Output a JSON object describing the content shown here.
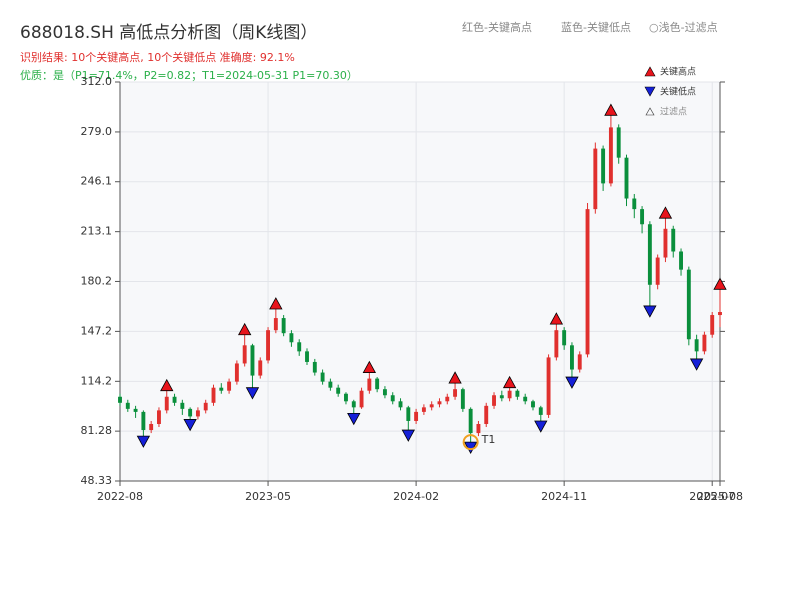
{
  "chart_data": {
    "type": "candlestick",
    "title": "688018.SH 高低点分析图（周K线图）",
    "top_legend": [
      "红色-关键高点",
      "蓝色-关键低点",
      "○浅色-过滤点"
    ],
    "subtitle": "识别结果: 10个关键高点, 10个关键低点  准确度: 92.1%",
    "quality": "优质：是（P1=71.4%，P2=0.82；T1=2024-05-31 P1=70.30）",
    "up_color": "#e0302e",
    "down_color": "#0a8f3c",
    "categories": [
      "2022-08",
      null,
      null,
      null,
      null,
      null,
      null,
      null,
      null,
      null,
      null,
      null,
      null,
      null,
      null,
      null,
      null,
      null,
      null,
      "2023-05",
      null,
      null,
      null,
      null,
      null,
      null,
      null,
      null,
      null,
      null,
      null,
      null,
      null,
      null,
      null,
      null,
      null,
      null,
      "2024-02",
      null,
      null,
      null,
      null,
      null,
      null,
      null,
      null,
      null,
      null,
      null,
      null,
      null,
      null,
      null,
      null,
      null,
      null,
      "2024-11",
      null,
      null,
      null,
      null,
      null,
      null,
      null,
      null,
      null,
      null,
      null,
      null,
      null,
      null,
      null,
      null,
      null,
      null,
      "2025-07",
      "2025-08"
    ],
    "open": [
      104,
      100,
      96,
      94,
      82,
      86,
      95,
      104,
      100,
      96,
      91,
      95,
      100,
      110,
      108,
      114,
      126,
      138,
      118,
      128,
      148,
      156,
      146,
      140,
      134,
      127,
      120,
      114,
      110,
      106,
      101,
      97,
      108,
      116,
      109,
      105,
      101,
      97,
      88,
      94,
      97,
      99,
      101,
      104,
      109,
      96,
      80,
      86,
      98,
      105,
      103,
      108,
      104,
      101,
      97,
      92,
      130,
      148,
      138,
      122,
      132,
      228,
      268,
      245,
      282,
      262,
      235,
      228,
      218,
      178,
      196,
      215,
      200,
      188,
      142,
      134,
      145,
      158
    ],
    "high": [
      106,
      102,
      98,
      95,
      88,
      97,
      108,
      106,
      102,
      97,
      97,
      102,
      112,
      113,
      116,
      128,
      145,
      139,
      130,
      150,
      162,
      158,
      148,
      142,
      136,
      129,
      122,
      116,
      112,
      107,
      102,
      110,
      120,
      117,
      111,
      107,
      103,
      98,
      96,
      99,
      101,
      103,
      106,
      113,
      110,
      97,
      88,
      100,
      107,
      108,
      110,
      109,
      106,
      102,
      98,
      132,
      152,
      150,
      140,
      134,
      232,
      272,
      270,
      290,
      284,
      264,
      238,
      230,
      220,
      198,
      222,
      217,
      202,
      190,
      145,
      147,
      160,
      175
    ],
    "low": [
      98,
      94,
      90,
      78,
      80,
      84,
      93,
      98,
      92,
      89,
      89,
      93,
      98,
      106,
      106,
      112,
      124,
      110,
      116,
      126,
      146,
      144,
      137,
      131,
      125,
      118,
      112,
      108,
      104,
      99,
      93,
      96,
      106,
      107,
      103,
      99,
      95,
      82,
      86,
      92,
      95,
      97,
      99,
      102,
      94,
      74,
      78,
      84,
      96,
      101,
      101,
      102,
      99,
      95,
      88,
      90,
      128,
      135,
      117,
      120,
      130,
      225,
      240,
      243,
      258,
      230,
      222,
      212,
      164,
      175,
      193,
      196,
      184,
      138,
      129,
      132,
      143,
      150
    ],
    "close": [
      100,
      96,
      94,
      82,
      86,
      95,
      104,
      100,
      96,
      91,
      95,
      100,
      110,
      108,
      114,
      126,
      138,
      118,
      128,
      148,
      156,
      146,
      140,
      134,
      127,
      120,
      114,
      110,
      106,
      101,
      97,
      108,
      116,
      109,
      105,
      101,
      97,
      88,
      94,
      97,
      99,
      101,
      104,
      109,
      96,
      80,
      86,
      98,
      105,
      103,
      108,
      104,
      101,
      97,
      92,
      130,
      148,
      138,
      122,
      132,
      228,
      268,
      245,
      282,
      262,
      235,
      228,
      218,
      178,
      196,
      215,
      200,
      188,
      142,
      134,
      145,
      158,
      160
    ],
    "key_highs": {
      "name": "关键高点",
      "color": "#e8141c",
      "index": [
        6,
        16,
        20,
        32,
        43,
        50,
        56,
        63,
        70,
        77
      ],
      "values": [
        108,
        145,
        162,
        120,
        113,
        110,
        152,
        290,
        222,
        175
      ]
    },
    "key_lows": {
      "name": "关键低点",
      "color": "#1520d8",
      "index": [
        3,
        9,
        17,
        30,
        37,
        45,
        54,
        58,
        68,
        74
      ],
      "values": [
        78,
        89,
        110,
        93,
        82,
        74,
        88,
        117,
        164,
        129
      ]
    },
    "filtered": {
      "name": "过滤点"
    },
    "t1": {
      "label": "T1",
      "index": 45,
      "value": 74,
      "color": "#f0a020"
    },
    "ylim": [
      48.33,
      312.0
    ],
    "yticks": [
      48.33,
      81.28,
      114.2,
      147.2,
      180.2,
      213.1,
      246.1,
      {
        "value": 279.0,
        "label": "279.0"
      },
      {
        "value": 312.0,
        "label": "312.0"
      }
    ],
    "grid": true
  }
}
